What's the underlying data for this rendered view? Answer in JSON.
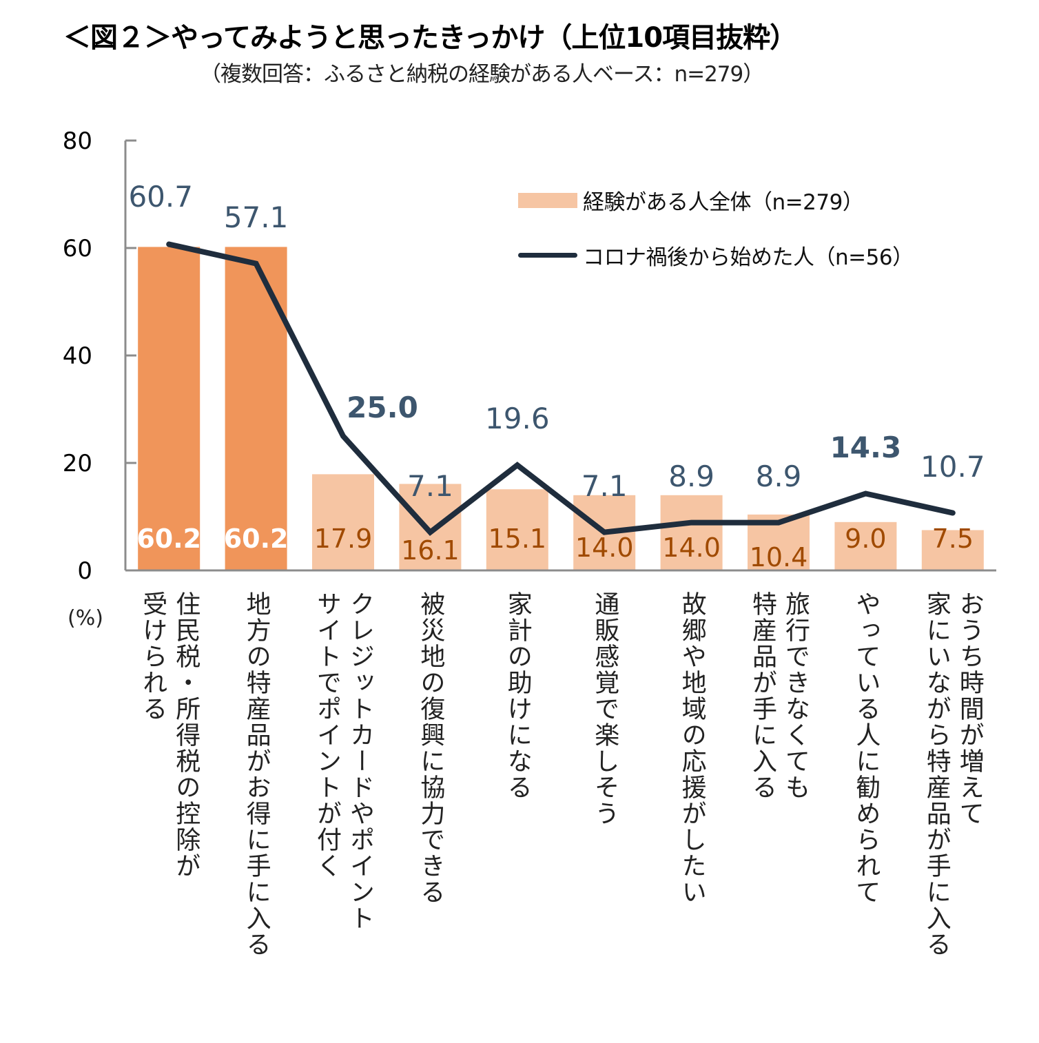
{
  "title": "＜図２＞やってみようと思ったきっかけ（上位10項目抜粋）",
  "subtitle": "（複数回答：ふるさと納税の経験がある人ベース：n=279）",
  "chart_data": {
    "type": "bar",
    "title": "＜図２＞やってみようと思ったきっかけ（上位10項目抜粋）",
    "subtitle": "（複数回答：ふるさと納税の経験がある人ベース：n=279）",
    "xlabel": "",
    "ylabel": "(%)",
    "ylim": [
      0,
      80
    ],
    "yticks": [
      0,
      20,
      40,
      60,
      80
    ],
    "grid": false,
    "legend_position": "top-right",
    "categories": [
      "住民税・所得税の控除が\n受けられる",
      "地方の特産品がお得に手に入る",
      "クレジットカードやポイント\nサイトでポイントが付く",
      "被災地の復興に協力できる",
      "家計の助けになる",
      "通販感覚で楽しそう",
      "故郷や地域の応援がしたい",
      "旅行できなくても\n特産品が手に入る",
      "やっている人に勧められて",
      "おうち時間が増えて\n家にいながら特産品が手に入る"
    ],
    "series": [
      {
        "name": "経験がある人全体（n=279）",
        "type": "bar",
        "color": "#f6c5a3",
        "highlight_color": "#f0955a",
        "highlight_indices": [
          0,
          1
        ],
        "values": [
          60.2,
          60.2,
          17.9,
          16.1,
          15.1,
          14.0,
          14.0,
          10.4,
          9.0,
          7.5
        ],
        "labels": [
          "60.2",
          "60.2",
          "17.9",
          "16.1",
          "15.1",
          "14.0",
          "14.0",
          "10.4",
          "9.0",
          "7.5"
        ]
      },
      {
        "name": "コロナ禍後から始めた人（n=56）",
        "type": "line",
        "color": "#1f2d3d",
        "label_color": "#3d566e",
        "bold_label_indices": [
          2,
          8
        ],
        "values": [
          60.7,
          57.1,
          25.0,
          7.1,
          19.6,
          7.1,
          8.9,
          8.9,
          14.3,
          10.7
        ],
        "labels": [
          "60.7",
          "57.1",
          "25.0",
          "7.1",
          "19.6",
          "7.1",
          "8.9",
          "8.9",
          "14.3",
          "10.7"
        ]
      }
    ]
  },
  "legend": [
    {
      "label": "経験がある人全体（n=279）",
      "kind": "bar"
    },
    {
      "label": "コロナ禍後から始めた人（n=56）",
      "kind": "line"
    }
  ],
  "unit_label": "(%)"
}
